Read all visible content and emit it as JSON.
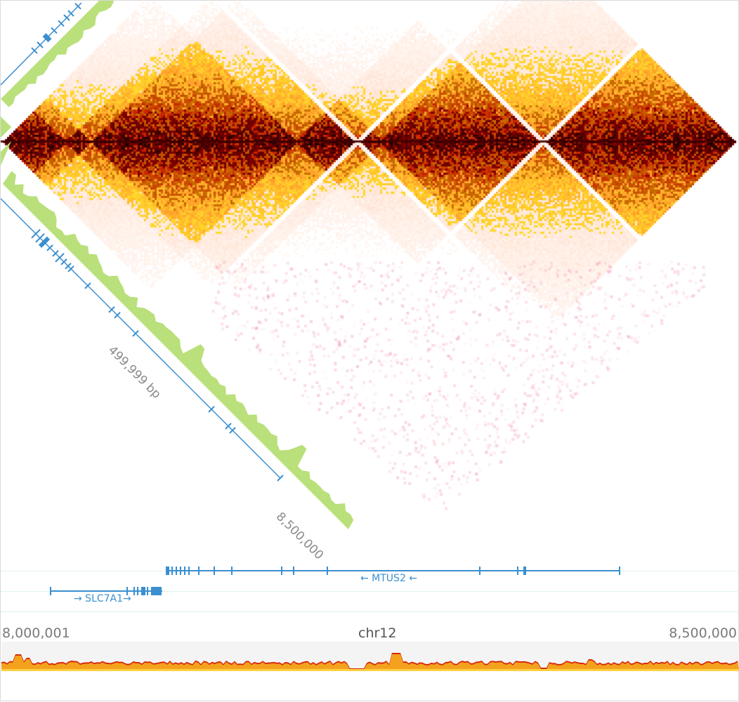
{
  "region": {
    "chromosome": "chr12",
    "start_label": "8,000,001",
    "end_label": "8,500,000",
    "span_label": "499,999 bp",
    "diagonal_end_label": "8,500,000"
  },
  "genes": [
    {
      "name": "MTUS2",
      "label": "← MTUS2 ←",
      "strand": "-"
    },
    {
      "name": "SLC7A1",
      "label": "→ SLC7A1→",
      "strand": "+"
    }
  ],
  "colors": {
    "gene": "#3a8fd0",
    "signal_track": "#b9e07a",
    "heatmap_low": "#ffeeaa",
    "heatmap_mid": "#ff8c00",
    "heatmap_high": "#3d0000",
    "coverage_fill": "#f4a21d",
    "coverage_top": "#d62a0a",
    "coverage_bg": "#f4f4f4"
  },
  "icons": [
    "heatmap-icon"
  ]
}
